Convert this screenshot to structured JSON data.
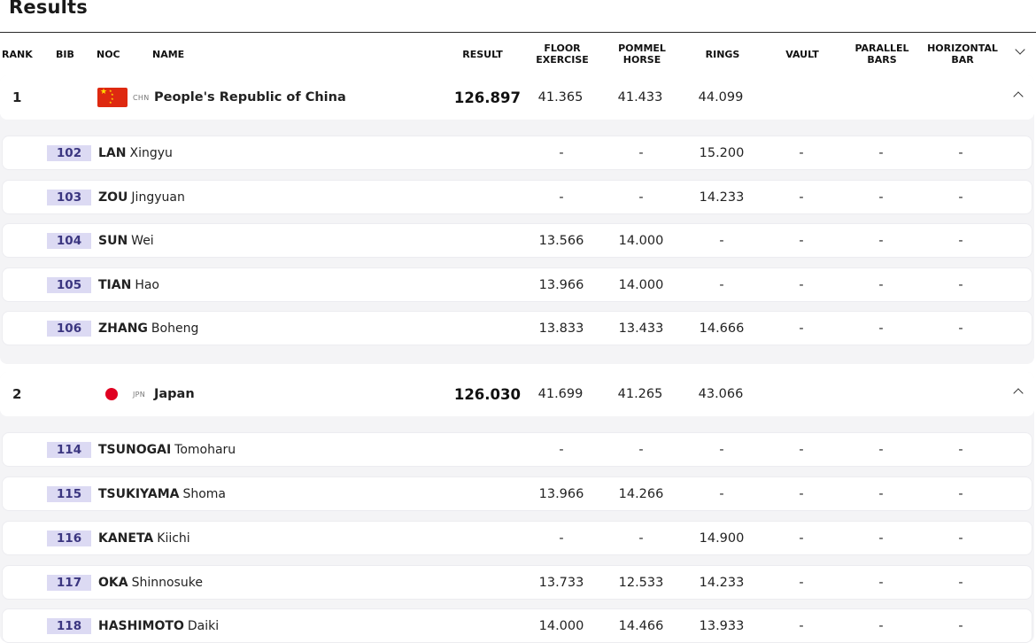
{
  "title": "Results",
  "columns": {
    "rank": "RANK",
    "bib": "BIB",
    "noc": "NOC",
    "name": "NAME",
    "result": "RESULT",
    "floor": [
      "FLOOR",
      "EXERCISE"
    ],
    "pommel": [
      "POMMEL",
      "HORSE"
    ],
    "rings": "RINGS",
    "vault": "VAULT",
    "parallel": [
      "PARALLEL",
      "BARS"
    ],
    "horizontal": [
      "HORIZONTAL",
      "BAR"
    ]
  },
  "teams": [
    {
      "rank": "1",
      "noc": "CHN",
      "country": "People's Republic of China",
      "flag": "china-flag",
      "result": "126.897",
      "floor": "41.365",
      "pommel": "41.433",
      "rings": "44.099",
      "vault": "",
      "parallel": "",
      "horizontal": "",
      "athletes": [
        {
          "bib": "102",
          "surname": "LAN",
          "given": "Xingyu",
          "floor": "-",
          "pommel": "-",
          "rings": "15.200",
          "vault": "-",
          "parallel": "-",
          "horizontal": "-"
        },
        {
          "bib": "103",
          "surname": "ZOU",
          "given": "Jingyuan",
          "floor": "-",
          "pommel": "-",
          "rings": "14.233",
          "vault": "-",
          "parallel": "-",
          "horizontal": "-"
        },
        {
          "bib": "104",
          "surname": "SUN",
          "given": "Wei",
          "floor": "13.566",
          "pommel": "14.000",
          "rings": "-",
          "vault": "-",
          "parallel": "-",
          "horizontal": "-"
        },
        {
          "bib": "105",
          "surname": "TIAN",
          "given": "Hao",
          "floor": "13.966",
          "pommel": "14.000",
          "rings": "-",
          "vault": "-",
          "parallel": "-",
          "horizontal": "-"
        },
        {
          "bib": "106",
          "surname": "ZHANG",
          "given": "Boheng",
          "floor": "13.833",
          "pommel": "13.433",
          "rings": "14.666",
          "vault": "-",
          "parallel": "-",
          "horizontal": "-"
        }
      ]
    },
    {
      "rank": "2",
      "noc": "JPN",
      "country": "Japan",
      "flag": "japan-flag",
      "result": "126.030",
      "floor": "41.699",
      "pommel": "41.265",
      "rings": "43.066",
      "vault": "",
      "parallel": "",
      "horizontal": "",
      "athletes": [
        {
          "bib": "114",
          "surname": "TSUNOGAI",
          "given": "Tomoharu",
          "floor": "-",
          "pommel": "-",
          "rings": "-",
          "vault": "-",
          "parallel": "-",
          "horizontal": "-"
        },
        {
          "bib": "115",
          "surname": "TSUKIYAMA",
          "given": "Shoma",
          "floor": "13.966",
          "pommel": "14.266",
          "rings": "-",
          "vault": "-",
          "parallel": "-",
          "horizontal": "-"
        },
        {
          "bib": "116",
          "surname": "KANETA",
          "given": "Kiichi",
          "floor": "-",
          "pommel": "-",
          "rings": "14.900",
          "vault": "-",
          "parallel": "-",
          "horizontal": "-"
        },
        {
          "bib": "117",
          "surname": "OKA",
          "given": "Shinnosuke",
          "floor": "13.733",
          "pommel": "12.533",
          "rings": "14.233",
          "vault": "-",
          "parallel": "-",
          "horizontal": "-"
        },
        {
          "bib": "118",
          "surname": "HASHIMOTO",
          "given": "Daiki",
          "floor": "14.000",
          "pommel": "14.466",
          "rings": "13.933",
          "vault": "-",
          "parallel": "-",
          "horizontal": "-"
        }
      ]
    }
  ],
  "icons": {
    "header_toggle": "chevron-down-icon",
    "group_toggle": "chevron-up-icon"
  },
  "colors": {
    "bib_bg": "#dcdaf3",
    "bib_text": "#3b3680",
    "china_red": "#de2910",
    "japan_red": "#e00021"
  }
}
